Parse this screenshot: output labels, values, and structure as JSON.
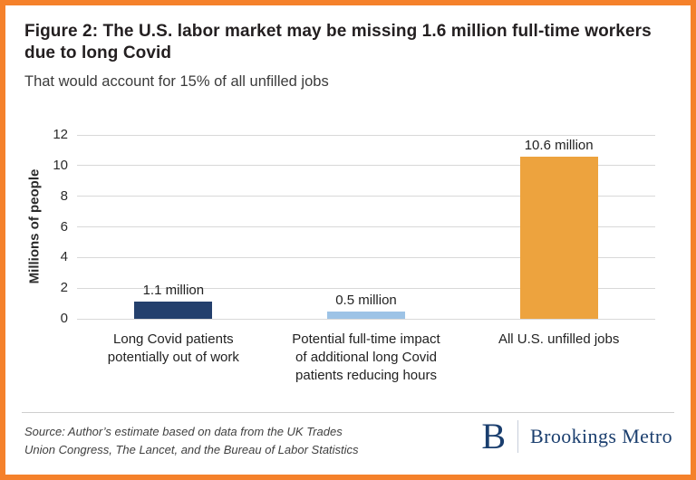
{
  "colors": {
    "frame_border": "#F5812B",
    "bar_navy": "#24406D",
    "bar_light_blue": "#9DC3E6",
    "bar_orange": "#EDA33E",
    "gridline": "#D8D8D8",
    "title_text": "#231F20",
    "brookings_navy": "#1A3E6E"
  },
  "header": {
    "title": "Figure 2: The U.S. labor market may be missing 1.6 million full-time workers\ndue to long Covid",
    "subtitle": "That would account for 15% of all unfilled jobs"
  },
  "chart_data": {
    "type": "bar",
    "ylabel": "Millions of people",
    "ylim": [
      0,
      12
    ],
    "yticks": [
      0,
      2,
      4,
      6,
      8,
      10,
      12
    ],
    "grid": true,
    "categories": [
      "Long Covid patients\npotentially out of work",
      "Potential full-time impact\nof additional long Covid\npatients reducing hours",
      "All U.S. unfilled jobs"
    ],
    "values": [
      1.1,
      0.5,
      10.6
    ],
    "data_labels": [
      "1.1 million",
      "0.5 million",
      "10.6 million"
    ],
    "bar_colors": [
      "#24406D",
      "#9DC3E6",
      "#EDA33E"
    ]
  },
  "footer": {
    "source": "Source: Author’s estimate based on data from the UK Trades\nUnion Congress, The Lancet, and the Bureau of Labor Statistics",
    "logo_letter": "B",
    "logo_text": "Brookings Metro"
  }
}
